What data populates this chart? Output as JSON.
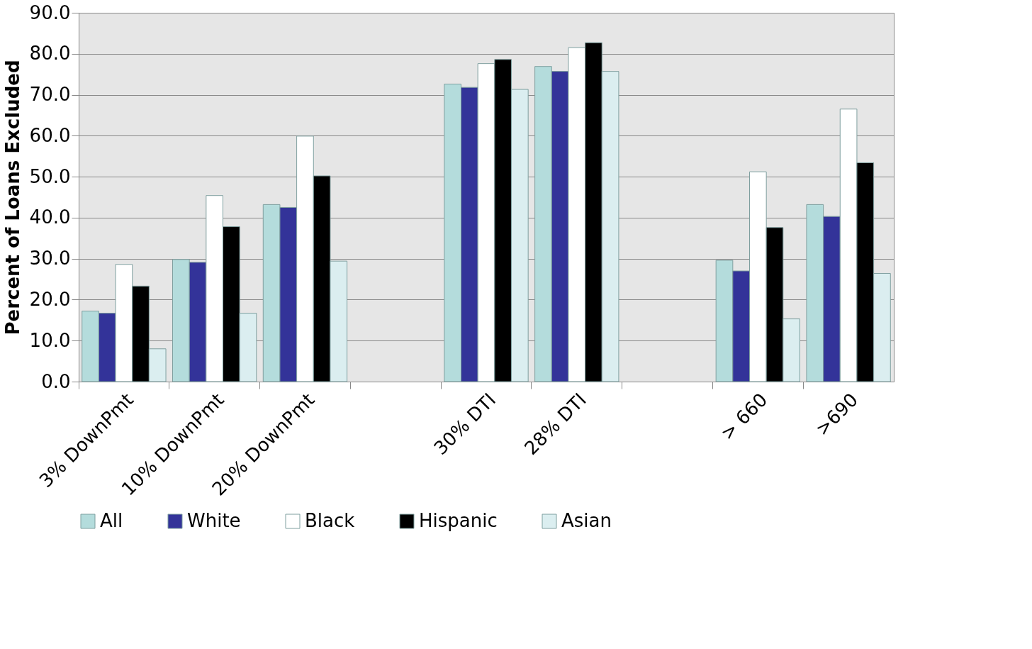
{
  "chart_data": {
    "type": "bar",
    "ylabel": "Percent of Loans Excluded",
    "categories": [
      "3%  DownPmt",
      "10% DownPmt",
      "20% DownPmt",
      null,
      "30% DTI",
      "28% DTI",
      null,
      "> 660",
      ">690"
    ],
    "series": [
      {
        "name": "All",
        "color": "#b4dcdc",
        "values": [
          17.2,
          29.8,
          43.2,
          null,
          72.6,
          76.9,
          null,
          29.6,
          43.2
        ]
      },
      {
        "name": "White",
        "color": "#333399",
        "values": [
          16.7,
          29.1,
          42.5,
          null,
          71.8,
          75.7,
          null,
          27.0,
          40.3
        ]
      },
      {
        "name": "Black",
        "color": "#ffffff",
        "values": [
          28.6,
          45.4,
          59.9,
          null,
          77.6,
          81.5,
          null,
          51.2,
          66.5
        ]
      },
      {
        "name": "Hispanic",
        "color": "#000000",
        "values": [
          23.3,
          37.8,
          50.2,
          null,
          78.6,
          82.7,
          null,
          37.6,
          53.4
        ]
      },
      {
        "name": "Asian",
        "color": "#dbeef0",
        "values": [
          8.0,
          16.7,
          29.4,
          null,
          71.3,
          75.7,
          null,
          15.3,
          26.4
        ]
      }
    ],
    "ylim": [
      0,
      90
    ],
    "yticks": [
      {
        "value": 0,
        "label": "0.0"
      },
      {
        "value": 10,
        "label": "10.0"
      },
      {
        "value": 20,
        "label": "20.0"
      },
      {
        "value": 30,
        "label": "30.0"
      },
      {
        "value": 40,
        "label": "40.0"
      },
      {
        "value": 50,
        "label": "50.0"
      },
      {
        "value": 60,
        "label": "60.0"
      },
      {
        "value": 70,
        "label": "70.0"
      },
      {
        "value": 80,
        "label": "80.0"
      },
      {
        "value": 90,
        "label": "90.0"
      }
    ],
    "grid": "y",
    "legend": "bottom"
  }
}
